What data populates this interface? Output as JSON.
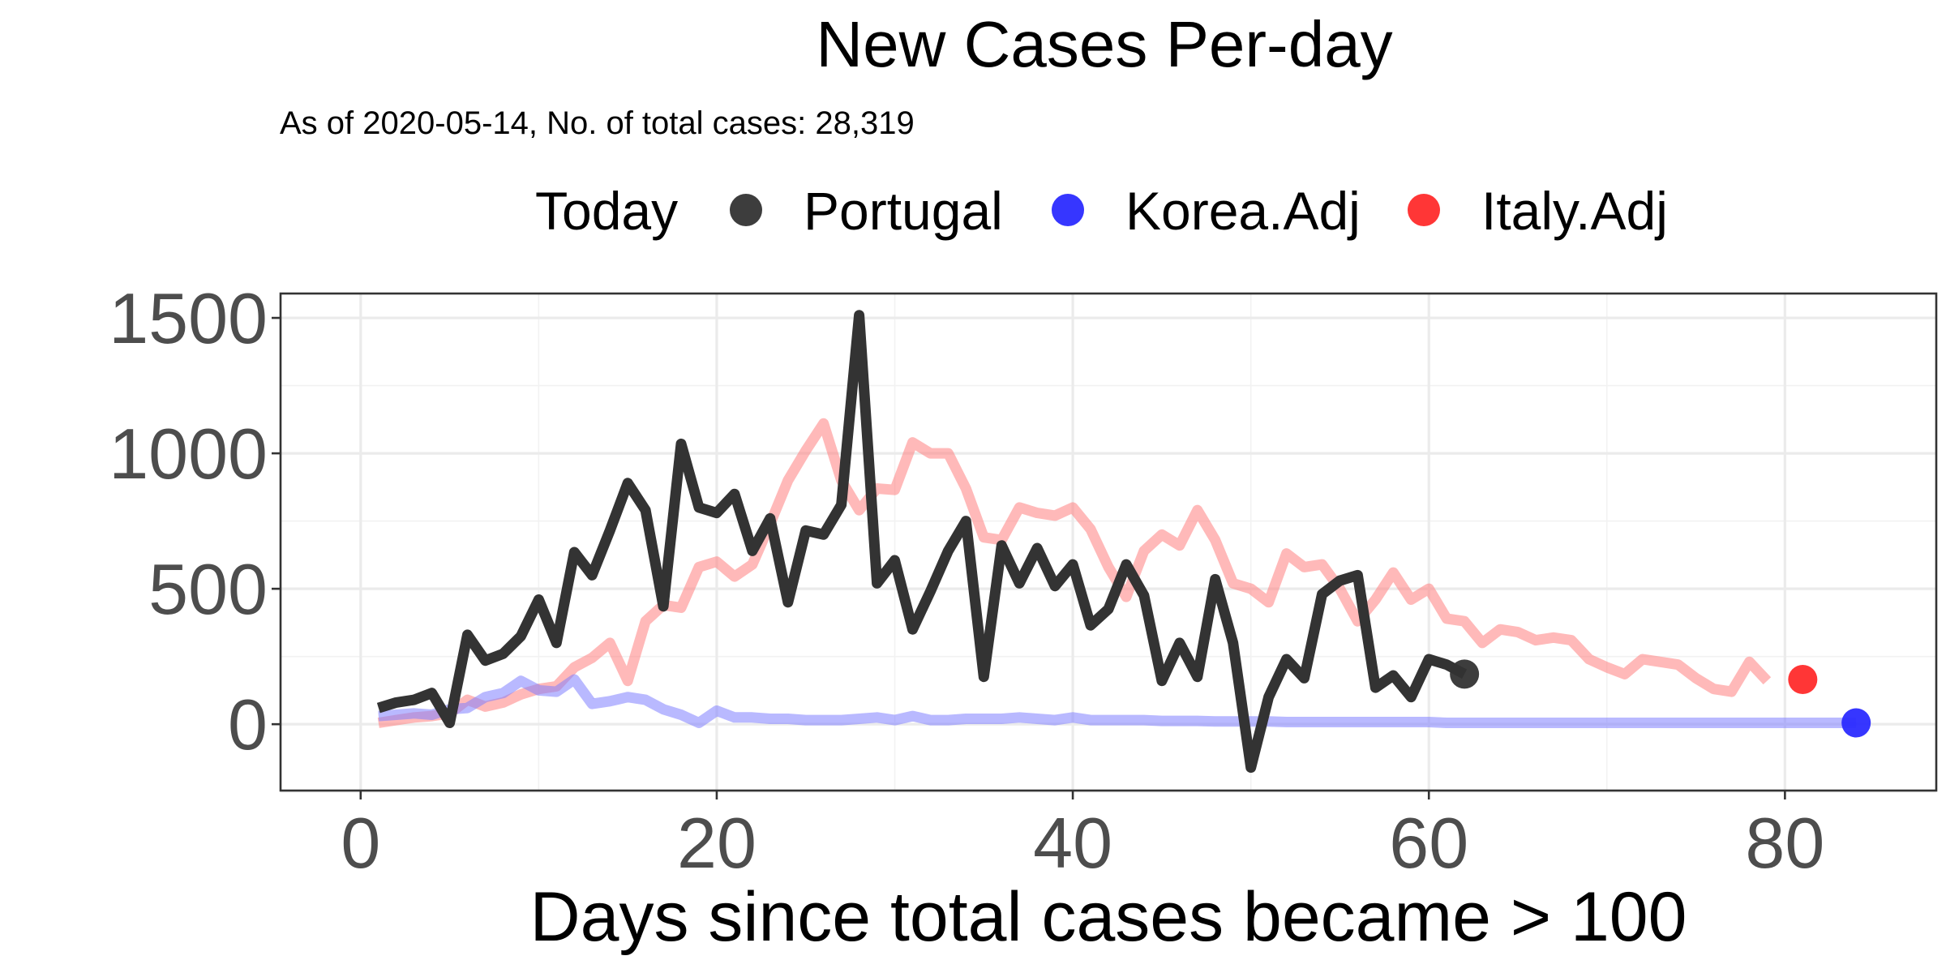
{
  "chart_data": {
    "type": "line",
    "title": "New Cases Per-day",
    "subtitle": "As of 2020-05-14, No. of total cases: 28,319",
    "xlabel": "Days since total cases became > 100",
    "ylabel": "",
    "xlim": [
      -4.5,
      88.5
    ],
    "ylim": [
      -245,
      1590
    ],
    "x_ticks": [
      0,
      20,
      40,
      60,
      80
    ],
    "y_ticks": [
      0,
      500,
      1000,
      1500
    ],
    "grid": true,
    "legend": {
      "title": "Today",
      "position": "top",
      "entries": [
        {
          "name": "Portugal",
          "color": "#333333"
        },
        {
          "name": "Korea.Adj",
          "color": "#2b2bff"
        },
        {
          "name": "Italy.Adj",
          "color": "#ff2b2b"
        }
      ]
    },
    "series": [
      {
        "name": "Italy.Adj",
        "color": "#ff8080",
        "opacity": 0.55,
        "x_start": 1,
        "values": [
          5,
          15,
          25,
          30,
          40,
          90,
          65,
          80,
          110,
          130,
          140,
          210,
          245,
          300,
          160,
          380,
          440,
          430,
          580,
          600,
          545,
          590,
          740,
          900,
          1010,
          1110,
          900,
          790,
          870,
          865,
          1040,
          1000,
          1000,
          870,
          690,
          680,
          800,
          780,
          770,
          800,
          720,
          580,
          470,
          640,
          700,
          660,
          790,
          680,
          520,
          500,
          450,
          630,
          580,
          590,
          500,
          380,
          460,
          560,
          460,
          500,
          390,
          380,
          300,
          350,
          340,
          310,
          320,
          310,
          240,
          210,
          185,
          240,
          230,
          220,
          170,
          130,
          120,
          230,
          160
        ],
        "today": {
          "x": 81,
          "y": 165
        }
      },
      {
        "name": "Korea.Adj",
        "color": "#8080ff",
        "opacity": 0.55,
        "x_start": 1,
        "values": [
          30,
          35,
          40,
          35,
          55,
          60,
          100,
          115,
          160,
          125,
          120,
          165,
          75,
          85,
          100,
          90,
          55,
          35,
          5,
          50,
          25,
          25,
          20,
          20,
          15,
          15,
          15,
          20,
          25,
          15,
          30,
          15,
          15,
          20,
          20,
          20,
          25,
          20,
          15,
          25,
          15,
          15,
          15,
          15,
          12,
          12,
          12,
          10,
          10,
          10,
          10,
          8,
          8,
          8,
          8,
          8,
          8,
          8,
          8,
          8,
          5,
          5,
          5,
          5,
          5,
          5,
          5,
          5,
          5,
          5,
          5,
          5,
          5,
          5,
          5,
          5,
          5,
          5,
          5,
          5,
          5,
          5,
          5,
          5
        ],
        "today": {
          "x": 84,
          "y": 5
        }
      },
      {
        "name": "Portugal",
        "color": "#333333",
        "opacity": 1,
        "x_start": 1,
        "values": [
          60,
          80,
          90,
          115,
          5,
          330,
          235,
          260,
          325,
          460,
          300,
          635,
          550,
          715,
          890,
          790,
          435,
          1035,
          800,
          780,
          850,
          640,
          760,
          450,
          715,
          700,
          810,
          1510,
          520,
          605,
          350,
          490,
          640,
          750,
          175,
          660,
          520,
          650,
          510,
          590,
          365,
          425,
          590,
          475,
          160,
          300,
          175,
          535,
          300,
          -160,
          100,
          240,
          170,
          480,
          530,
          550,
          135,
          180,
          100,
          240,
          220,
          185
        ],
        "today": {
          "x": 62,
          "y": 185
        }
      }
    ]
  }
}
